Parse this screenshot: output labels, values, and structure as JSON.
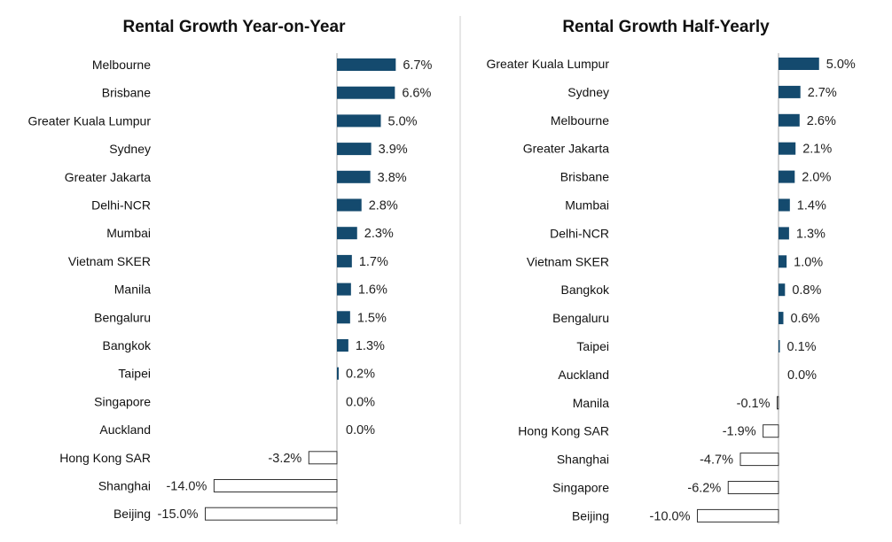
{
  "chart_data": [
    {
      "type": "bar",
      "orientation": "horizontal",
      "title": "Rental Growth Year-on-Year",
      "categories": [
        "Melbourne",
        "Brisbane",
        "Greater Kuala Lumpur",
        "Sydney",
        "Greater Jakarta",
        "Delhi-NCR",
        "Mumbai",
        "Vietnam SKER",
        "Manila",
        "Bengaluru",
        "Bangkok",
        "Taipei",
        "Singapore",
        "Auckland",
        "Hong Kong SAR",
        "Shanghai",
        "Beijing"
      ],
      "values": [
        6.7,
        6.6,
        5.0,
        3.9,
        3.8,
        2.8,
        2.3,
        1.7,
        1.6,
        1.5,
        1.3,
        0.2,
        0.0,
        0.0,
        -3.2,
        -14.0,
        -15.0
      ],
      "labels": [
        "6.7%",
        "6.6%",
        "5.0%",
        "3.9%",
        "3.8%",
        "2.8%",
        "2.3%",
        "1.7%",
        "1.6%",
        "1.5%",
        "1.3%",
        "0.2%",
        "0.0%",
        "0.0%",
        "-3.2%",
        "-14.0%",
        "-15.0%"
      ],
      "unit": "%"
    },
    {
      "type": "bar",
      "orientation": "horizontal",
      "title": "Rental Growth Half-Yearly",
      "categories": [
        "Greater Kuala Lumpur",
        "Sydney",
        "Melbourne",
        "Greater Jakarta",
        "Brisbane",
        "Mumbai",
        "Delhi-NCR",
        "Vietnam SKER",
        "Bangkok",
        "Bengaluru",
        "Taipei",
        "Auckland",
        "Manila",
        "Hong Kong SAR",
        "Shanghai",
        "Singapore",
        "Beijing"
      ],
      "values": [
        5.0,
        2.7,
        2.6,
        2.1,
        2.0,
        1.4,
        1.3,
        1.0,
        0.8,
        0.6,
        0.1,
        0.0,
        -0.1,
        -1.9,
        -4.7,
        -6.2,
        -10.0
      ],
      "labels": [
        "5.0%",
        "2.7%",
        "2.6%",
        "2.1%",
        "2.0%",
        "1.4%",
        "1.3%",
        "1.0%",
        "0.8%",
        "0.6%",
        "0.1%",
        "0.0%",
        "-0.1%",
        "-1.9%",
        "-4.7%",
        "-6.2%",
        "-10.0%"
      ],
      "unit": "%"
    }
  ],
  "colors": {
    "positive_bar": "#144A6E",
    "negative_fill": "#ffffff",
    "negative_stroke": "#333333",
    "axis": "#aaaaaa",
    "divider": "#cccccc"
  }
}
